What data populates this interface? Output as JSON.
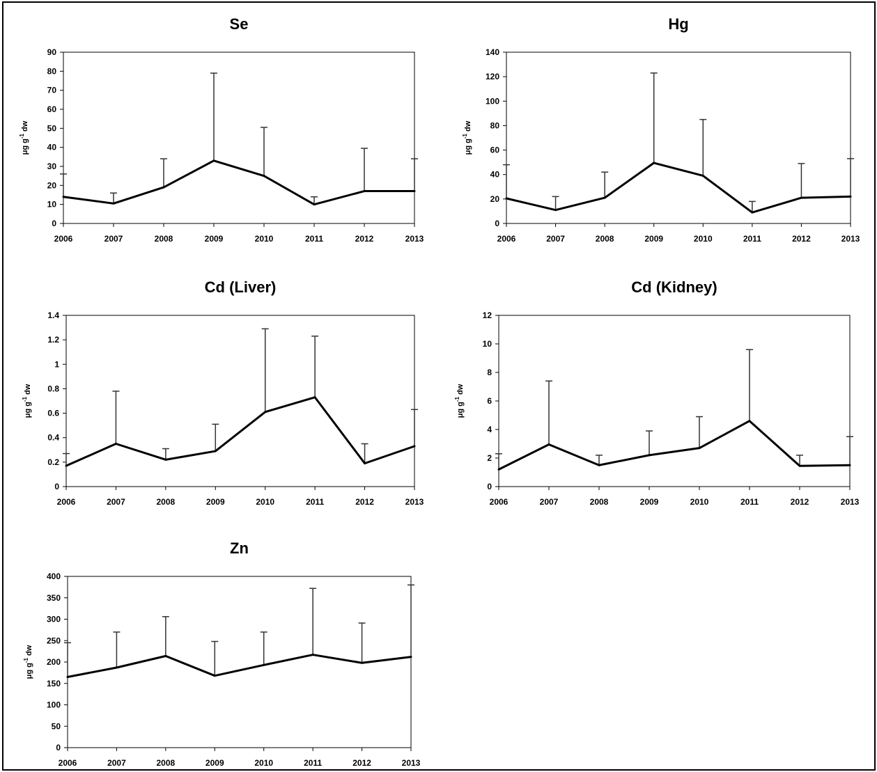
{
  "chart_data": [
    {
      "type": "line",
      "title": "Se",
      "ylabel": "μg g⁻¹ dw",
      "ylabel_base": "μg g",
      "ylabel_sup": "-1",
      "ylabel_unit": " dw",
      "x": [
        "2006",
        "2007",
        "2008",
        "2009",
        "2010",
        "2011",
        "2012",
        "2013"
      ],
      "ylim": [
        0,
        90
      ],
      "yticks": [
        "0",
        "10",
        "20",
        "30",
        "40",
        "50",
        "60",
        "70",
        "80",
        "90"
      ],
      "series": [
        {
          "values": [
            14,
            10.5,
            19,
            33,
            25,
            10,
            17,
            17
          ],
          "error_upper": [
            26,
            16,
            34,
            79,
            50.5,
            14,
            39.5,
            34
          ]
        }
      ]
    },
    {
      "type": "line",
      "title": "Hg",
      "ylabel": "μg g⁻¹ dw",
      "ylabel_base": "μg g",
      "ylabel_sup": "-1",
      "ylabel_unit": " dw",
      "x": [
        "2006",
        "2007",
        "2008",
        "2009",
        "2010",
        "2011",
        "2012",
        "2013"
      ],
      "ylim": [
        0,
        140
      ],
      "yticks": [
        "0",
        "20",
        "40",
        "60",
        "80",
        "100",
        "120",
        "140"
      ],
      "series": [
        {
          "values": [
            20.5,
            11,
            21,
            49.5,
            39,
            9,
            21,
            22
          ],
          "error_upper": [
            48,
            22,
            42,
            123,
            85,
            18,
            49,
            53
          ]
        }
      ]
    },
    {
      "type": "line",
      "title": "Cd (Liver)",
      "ylabel": "μg g⁻¹ dw",
      "ylabel_base": "μg g",
      "ylabel_sup": "-1",
      "ylabel_unit": " dw",
      "x": [
        "2006",
        "2007",
        "2008",
        "2009",
        "2010",
        "2011",
        "2012",
        "2013"
      ],
      "ylim": [
        0,
        1.4
      ],
      "yticks": [
        "0",
        "0.2",
        "0.4",
        "0.6",
        "0.8",
        "1",
        "1.2",
        "1.4"
      ],
      "series": [
        {
          "values": [
            0.17,
            0.35,
            0.22,
            0.29,
            0.61,
            0.73,
            0.19,
            0.33
          ],
          "error_upper": [
            0.27,
            0.78,
            0.31,
            0.51,
            1.29,
            1.23,
            0.35,
            0.63
          ]
        }
      ]
    },
    {
      "type": "line",
      "title": "Cd (Kidney)",
      "ylabel": "μg g⁻¹ dw",
      "ylabel_base": "μg g",
      "ylabel_sup": "-1",
      "ylabel_unit": " dw",
      "x": [
        "2006",
        "2007",
        "2008",
        "2009",
        "2010",
        "2011",
        "2012",
        "2013"
      ],
      "ylim": [
        0,
        12
      ],
      "yticks": [
        "0",
        "2",
        "4",
        "6",
        "8",
        "10",
        "12"
      ],
      "series": [
        {
          "values": [
            1.2,
            2.95,
            1.5,
            2.2,
            2.7,
            4.6,
            1.45,
            1.5
          ],
          "error_upper": [
            2.3,
            7.4,
            2.2,
            3.9,
            4.9,
            9.6,
            2.2,
            3.5
          ]
        }
      ]
    },
    {
      "type": "line",
      "title": "Zn",
      "ylabel": "μg g⁻¹ dw",
      "ylabel_base": "μg g",
      "ylabel_sup": "-1",
      "ylabel_unit": " dw",
      "x": [
        "2006",
        "2007",
        "2008",
        "2009",
        "2010",
        "2011",
        "2012",
        "2013"
      ],
      "ylim": [
        0,
        400
      ],
      "yticks": [
        "0",
        "50",
        "100",
        "150",
        "200",
        "250",
        "300",
        "350",
        "400"
      ],
      "series": [
        {
          "values": [
            165,
            187,
            214,
            168,
            193,
            217,
            198,
            212
          ],
          "error_upper": [
            245,
            270,
            306,
            248,
            270,
            372,
            291,
            380
          ]
        }
      ]
    }
  ]
}
